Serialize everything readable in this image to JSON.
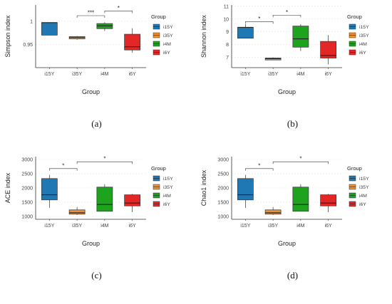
{
  "legend_title": "Group",
  "group_colors": {
    "i15Y": "#1f78b4",
    "i35Y": "#f28e2b",
    "i4M": "#1ea31e",
    "i6Y": "#e32626"
  },
  "chart_data": [
    {
      "type": "boxplot",
      "caption": "(a)",
      "xlabel": "Group",
      "ylabel": "Simpson index",
      "categories": [
        "i15Y",
        "i35Y",
        "i4M",
        "i6Y"
      ],
      "ylim": [
        0.9,
        1.035
      ],
      "yticks": [
        0.95,
        1.0
      ],
      "ytick_labels": [
        "0.95",
        "1"
      ],
      "boxes": [
        {
          "group": "i15Y",
          "min": 0.97,
          "q1": 0.97,
          "median": 0.997,
          "q3": 0.997,
          "max": 0.997
        },
        {
          "group": "i35Y",
          "min": 0.96,
          "q1": 0.962,
          "median": 0.965,
          "q3": 0.967,
          "max": 0.968
        },
        {
          "group": "i4M",
          "min": 0.979,
          "q1": 0.984,
          "median": 0.99,
          "q3": 0.995,
          "max": 0.998
        },
        {
          "group": "i6Y",
          "min": 0.932,
          "q1": 0.938,
          "median": 0.945,
          "q3": 0.972,
          "max": 0.985
        }
      ],
      "significance": [
        {
          "from": "i35Y",
          "to": "i4M",
          "label": "***",
          "y": 1.012
        },
        {
          "from": "i4M",
          "to": "i6Y",
          "label": "*",
          "y": 1.022
        }
      ],
      "legend_position": "right"
    },
    {
      "type": "boxplot",
      "caption": "(b)",
      "xlabel": "Group",
      "ylabel": "Shannon index",
      "categories": [
        "i15Y",
        "i35Y",
        "i4M",
        "i6Y"
      ],
      "ylim": [
        6.2,
        11.1
      ],
      "yticks": [
        7,
        8,
        9,
        10,
        11
      ],
      "ytick_labels": [
        "7",
        "8",
        "9",
        "10",
        "11"
      ],
      "boxes": [
        {
          "group": "i15Y",
          "min": 8.5,
          "q1": 8.5,
          "median": 9.35,
          "q3": 9.35,
          "max": 9.6
        },
        {
          "group": "i35Y",
          "min": 6.8,
          "q1": 6.8,
          "median": 6.9,
          "q3": 6.95,
          "max": 7.0
        },
        {
          "group": "i4M",
          "min": 7.5,
          "q1": 7.8,
          "median": 8.45,
          "q3": 9.45,
          "max": 9.6
        },
        {
          "group": "i6Y",
          "min": 6.45,
          "q1": 6.95,
          "median": 7.15,
          "q3": 8.25,
          "max": 8.75
        }
      ],
      "significance": [
        {
          "from": "i15Y",
          "to": "i35Y",
          "label": "*",
          "y": 9.8
        },
        {
          "from": "i35Y",
          "to": "i4M",
          "label": "*",
          "y": 10.3
        }
      ],
      "legend_position": "right"
    },
    {
      "type": "boxplot",
      "caption": "(c)",
      "xlabel": "Group",
      "ylabel": "ACE index",
      "categories": [
        "i15Y",
        "i35Y",
        "i4M",
        "i6Y"
      ],
      "ylim": [
        900,
        3100
      ],
      "yticks": [
        1000,
        1500,
        2000,
        2500,
        3000
      ],
      "ytick_labels": [
        "1000",
        "1500",
        "2000",
        "2500",
        "3000"
      ],
      "boxes": [
        {
          "group": "i15Y",
          "min": 1300,
          "q1": 1580,
          "median": 1760,
          "q3": 2330,
          "max": 2460
        },
        {
          "group": "i35Y",
          "min": 1050,
          "q1": 1080,
          "median": 1130,
          "q3": 1230,
          "max": 1330
        },
        {
          "group": "i4M",
          "min": 1180,
          "q1": 1180,
          "median": 1420,
          "q3": 2030,
          "max": 2130
        },
        {
          "group": "i6Y",
          "min": 1150,
          "q1": 1370,
          "median": 1470,
          "q3": 1760,
          "max": 1790
        }
      ],
      "significance": [
        {
          "from": "i15Y",
          "to": "i35Y",
          "label": "*",
          "y": 2680
        },
        {
          "from": "i35Y",
          "to": "i6Y",
          "label": "*",
          "y": 2920
        }
      ],
      "legend_position": "right"
    },
    {
      "type": "boxplot",
      "caption": "(d)",
      "xlabel": "Group",
      "ylabel": "Chao1 index",
      "categories": [
        "i15Y",
        "i35Y",
        "i4M",
        "i6Y"
      ],
      "ylim": [
        900,
        3100
      ],
      "yticks": [
        1000,
        1500,
        2000,
        2500,
        3000
      ],
      "ytick_labels": [
        "1000",
        "1500",
        "2000",
        "2500",
        "3000"
      ],
      "boxes": [
        {
          "group": "i15Y",
          "min": 1300,
          "q1": 1580,
          "median": 1760,
          "q3": 2330,
          "max": 2460
        },
        {
          "group": "i35Y",
          "min": 1050,
          "q1": 1080,
          "median": 1130,
          "q3": 1230,
          "max": 1330
        },
        {
          "group": "i4M",
          "min": 1180,
          "q1": 1180,
          "median": 1420,
          "q3": 2030,
          "max": 2130
        },
        {
          "group": "i6Y",
          "min": 1150,
          "q1": 1370,
          "median": 1470,
          "q3": 1760,
          "max": 1790
        }
      ],
      "significance": [
        {
          "from": "i15Y",
          "to": "i35Y",
          "label": "*",
          "y": 2680
        },
        {
          "from": "i35Y",
          "to": "i6Y",
          "label": "*",
          "y": 2920
        }
      ],
      "legend_position": "right"
    }
  ]
}
